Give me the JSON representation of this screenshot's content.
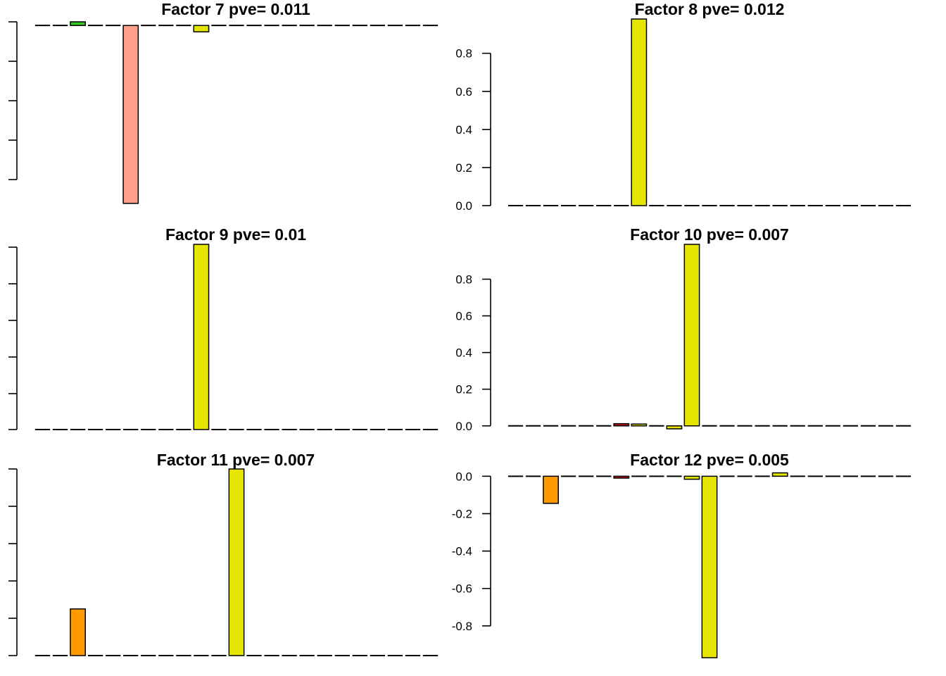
{
  "chart_data": [
    {
      "type": "bar",
      "title": "Factor 7 pve= 0.011",
      "ylim": [
        -1.0,
        0.02
      ],
      "yticks": [],
      "show_tick_labels": false,
      "values": [
        0,
        0,
        0.02,
        0,
        0,
        -0.98,
        0,
        0,
        0,
        -0.035,
        0,
        0,
        0,
        0,
        0,
        0,
        0,
        0,
        0,
        0,
        0,
        0,
        0
      ],
      "colors": [
        "#ffffff",
        "#ffffff",
        "#33cc22",
        "#ffffff",
        "#ffffff",
        "#ff9e8a",
        "#ffffff",
        "#ffffff",
        "#ffffff",
        "#e6e600",
        "#ffffff",
        "#ffffff",
        "#ffffff",
        "#ffffff",
        "#ffffff",
        "#ffffff",
        "#ffffff",
        "#ffffff",
        "#ffffff",
        "#ffffff",
        "#ffffff",
        "#ffffff",
        "#ffffff"
      ]
    },
    {
      "type": "bar",
      "title": "Factor 8 pve= 0.012",
      "ylim": [
        0,
        0.98
      ],
      "yticks": [
        0.0,
        0.2,
        0.4,
        0.6,
        0.8
      ],
      "ytick_labels": [
        "0.0",
        "0.2",
        "0.4",
        "0.6",
        "0.8"
      ],
      "show_tick_labels": true,
      "values": [
        0,
        0,
        0,
        0,
        0,
        0.005,
        0,
        0.98,
        0,
        0,
        0,
        0,
        0,
        0,
        0,
        0,
        0,
        0,
        0,
        0,
        0,
        0,
        0
      ],
      "colors": [
        "#ffffff",
        "#ffffff",
        "#ffffff",
        "#ffffff",
        "#ffffff",
        "#ffffff",
        "#ffffff",
        "#e6e600",
        "#ffffff",
        "#ffffff",
        "#ffffff",
        "#ffffff",
        "#ffffff",
        "#ffffff",
        "#ffffff",
        "#ffffff",
        "#ffffff",
        "#ffffff",
        "#ffffff",
        "#ffffff",
        "#ffffff",
        "#ffffff",
        "#ffffff"
      ]
    },
    {
      "type": "bar",
      "title": "Factor 9 pve= 0.01",
      "ylim": [
        0,
        1.0
      ],
      "yticks": [],
      "show_tick_labels": false,
      "values": [
        0,
        0,
        0,
        0,
        0,
        0,
        0,
        0,
        0,
        1.0,
        0,
        0,
        0,
        0,
        0,
        0,
        0,
        0,
        0,
        0,
        0,
        0,
        0
      ],
      "colors": [
        "#ffffff",
        "#ffffff",
        "#ffffff",
        "#ffffff",
        "#ffffff",
        "#ffffff",
        "#ffffff",
        "#ffffff",
        "#ffffff",
        "#e6e600",
        "#ffffff",
        "#ffffff",
        "#ffffff",
        "#ffffff",
        "#ffffff",
        "#ffffff",
        "#ffffff",
        "#ffffff",
        "#ffffff",
        "#ffffff",
        "#ffffff",
        "#ffffff",
        "#ffffff"
      ]
    },
    {
      "type": "bar",
      "title": "Factor 10 pve= 0.007",
      "ylim": [
        -0.02,
        0.99
      ],
      "yticks": [
        0.0,
        0.2,
        0.4,
        0.6,
        0.8
      ],
      "ytick_labels": [
        "0.0",
        "0.2",
        "0.4",
        "0.6",
        "0.8"
      ],
      "show_tick_labels": true,
      "values": [
        0,
        0,
        -0.006,
        -0.003,
        0,
        0,
        0.012,
        0.01,
        0,
        -0.016,
        0.99,
        0.005,
        0.005,
        0,
        0,
        -0.003,
        0.006,
        0,
        0,
        0,
        0,
        0,
        0
      ],
      "colors": [
        "#ffffff",
        "#ffffff",
        "#ffffff",
        "#ffffff",
        "#ffffff",
        "#ffffff",
        "#cc1111",
        "#e6e600",
        "#ffffff",
        "#e6e600",
        "#e6e600",
        "#ffffff",
        "#ffffff",
        "#ffffff",
        "#ffffff",
        "#ffffff",
        "#e6e600",
        "#ffffff",
        "#ffffff",
        "#ffffff",
        "#ffffff",
        "#ffffff",
        "#ffffff"
      ]
    },
    {
      "type": "bar",
      "title": "Factor 11 pve= 0.007",
      "ylim": [
        0,
        1.0
      ],
      "yticks": [],
      "show_tick_labels": false,
      "values": [
        0,
        0,
        0.25,
        0,
        0,
        0,
        0,
        0,
        0,
        0,
        0,
        1.0,
        0,
        0,
        0,
        0,
        0,
        0,
        0,
        0,
        0,
        0,
        0
      ],
      "colors": [
        "#ffffff",
        "#ffffff",
        "#ff9900",
        "#ffffff",
        "#ffffff",
        "#ffffff",
        "#ffffff",
        "#ffffff",
        "#ffffff",
        "#ffffff",
        "#ffffff",
        "#e6e600",
        "#ffffff",
        "#ffffff",
        "#ffffff",
        "#ffffff",
        "#ffffff",
        "#ffffff",
        "#ffffff",
        "#ffffff",
        "#ffffff",
        "#ffffff",
        "#ffffff"
      ]
    },
    {
      "type": "bar",
      "title": "Factor 12 pve= 0.005",
      "ylim": [
        -0.97,
        0.02
      ],
      "yticks": [
        0.0,
        -0.2,
        -0.4,
        -0.6,
        -0.8
      ],
      "ytick_labels": [
        "0.0",
        "-0.2",
        "-0.4",
        "-0.6",
        "-0.8"
      ],
      "show_tick_labels": true,
      "values": [
        0,
        -0.003,
        -0.145,
        -0.003,
        -0.002,
        -0.002,
        -0.01,
        0,
        -0.004,
        -0.002,
        -0.016,
        -0.97,
        -0.003,
        0.004,
        -0.002,
        0.018,
        0.003,
        0.004,
        0,
        -0.002,
        -0.002,
        -0.005,
        0
      ],
      "colors": [
        "#ffffff",
        "#ffffff",
        "#ff9900",
        "#ffffff",
        "#ffffff",
        "#ffffff",
        "#cc1111",
        "#ffffff",
        "#ffffff",
        "#ffffff",
        "#e6e600",
        "#e6e600",
        "#ffffff",
        "#ffffff",
        "#ffffff",
        "#e6e600",
        "#ffffff",
        "#ffffff",
        "#ffffff",
        "#ffffff",
        "#ffffff",
        "#ffffff",
        "#ffffff"
      ]
    }
  ]
}
